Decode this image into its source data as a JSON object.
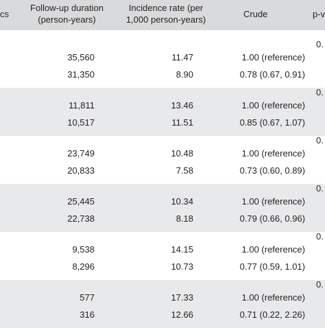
{
  "header": {
    "col0": "cs",
    "col1": [
      "Follow-up duration",
      "(person-years)"
    ],
    "col2": [
      "Incidence rate (per",
      "1,000 person-years)"
    ],
    "col3": "Crude",
    "col4": "p-v"
  },
  "groups": [
    {
      "p": "0.",
      "rows": [
        {
          "duration": "35,560",
          "rate": "11.47",
          "crude": "1.00 (reference)"
        },
        {
          "duration": "31,350",
          "rate": "8.90",
          "crude": "0.78 (0.67, 0.91)"
        }
      ]
    },
    {
      "p": "0.",
      "rows": [
        {
          "duration": "11,811",
          "rate": "13.46",
          "crude": "1.00 (reference)"
        },
        {
          "duration": "10,517",
          "rate": "11.51",
          "crude": "0.85 (0.67, 1.07)"
        }
      ]
    },
    {
      "p": "0.",
      "rows": [
        {
          "duration": "23,749",
          "rate": "10.48",
          "crude": "1.00 (reference)"
        },
        {
          "duration": "20,833",
          "rate": "7.58",
          "crude": "0.73 (0.60, 0.89)"
        }
      ]
    },
    {
      "p": "0.",
      "rows": [
        {
          "duration": "25,445",
          "rate": "10.34",
          "crude": "1.00 (reference)"
        },
        {
          "duration": "22,738",
          "rate": "8.18",
          "crude": "0.79 (0.66, 0.96)"
        }
      ]
    },
    {
      "p": "0.",
      "rows": [
        {
          "duration": "9,538",
          "rate": "14.15",
          "crude": "1.00 (reference)"
        },
        {
          "duration": "8,296",
          "rate": "10.73",
          "crude": "0.77 (0.59, 1.01)"
        }
      ]
    },
    {
      "p": "0.",
      "rows": [
        {
          "duration": "577",
          "rate": "17.33",
          "crude": "1.00 (reference)"
        },
        {
          "duration": "316",
          "rate": "12.66",
          "crude": "0.71 (0.22, 2.26)"
        }
      ]
    }
  ]
}
